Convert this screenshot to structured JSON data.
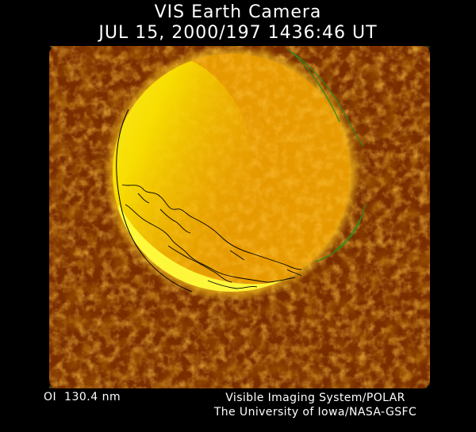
{
  "header": {
    "title": "VIS Earth Camera",
    "timestamp": "JUL 15, 2000/197 1436:46 UT"
  },
  "footer": {
    "filter_label": "OI  130.4 nm",
    "instrument": "Visible Imaging System/POLAR",
    "institution": "The University of Iowa/NASA-GSFC"
  },
  "image": {
    "subject": "far-ultraviolet image of Earth with auroral oval",
    "palette": [
      "#4a1800",
      "#8a3600",
      "#c96a00",
      "#f0b000",
      "#ffff40"
    ],
    "coastline_color": "#000000",
    "overlay_color": "#2e8a1a"
  }
}
